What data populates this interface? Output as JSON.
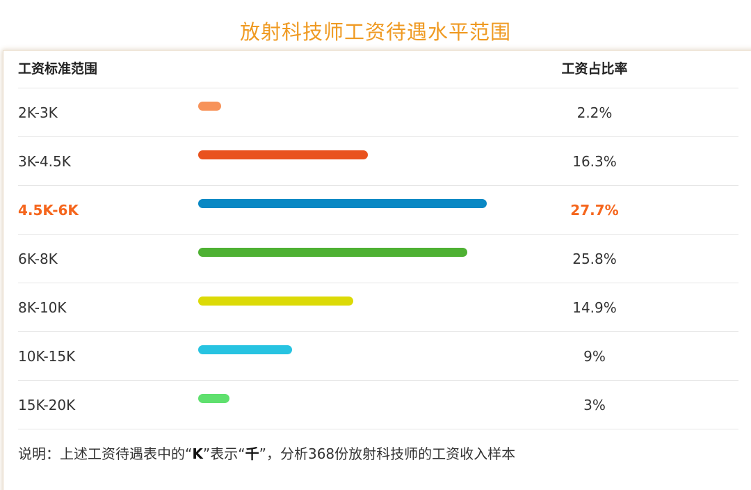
{
  "title": "放射科技师工资待遇水平范围",
  "table": {
    "header_range": "工资标准范围",
    "header_ratio": "工资占比率"
  },
  "chart_data": {
    "type": "bar",
    "title": "放射科技师工资待遇水平范围",
    "orientation": "horizontal",
    "categories": [
      "2K-3K",
      "3K-4.5K",
      "4.5K-6K",
      "6K-8K",
      "8K-10K",
      "10K-15K",
      "15K-20K"
    ],
    "values": [
      2.2,
      16.3,
      27.7,
      25.8,
      14.9,
      9,
      3
    ],
    "value_labels": [
      "2.2%",
      "16.3%",
      "27.7%",
      "25.8%",
      "14.9%",
      "9%",
      "3%"
    ],
    "unit": "%",
    "colors": [
      "#f7935a",
      "#e9521e",
      "#0a88c4",
      "#4eb133",
      "#dcda06",
      "#27c3e1",
      "#5fe06e"
    ],
    "highlight_index": 2,
    "highlight_color": "#f5661d",
    "grid": false,
    "legend": "none"
  },
  "note": {
    "prefix": "说明：上述工资待遇表中的“",
    "k": "K",
    "mid": "”表示“",
    "qian": "千",
    "suffix": "”，分析368份放射科技师的工资收入样本"
  }
}
